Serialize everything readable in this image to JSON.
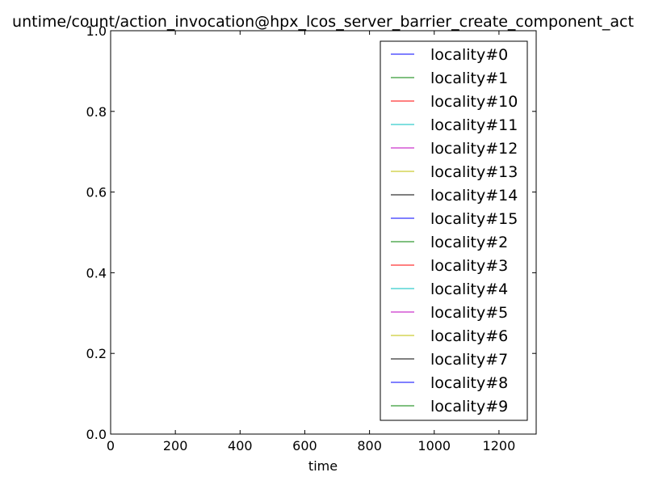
{
  "chart_data": {
    "type": "line",
    "title": "untime/count/action_invocation@hpx_lcos_server_barrier_create_component_act",
    "xlabel": "time",
    "ylabel": "",
    "xlim": [
      0,
      1315
    ],
    "ylim": [
      0.0,
      1.0
    ],
    "x_ticks": [
      "0",
      "200",
      "400",
      "600",
      "800",
      "1000",
      "1200"
    ],
    "y_ticks": [
      "0.0",
      "0.2",
      "0.4",
      "0.6",
      "0.8",
      "1.0"
    ],
    "grid": false,
    "legend_position": "upper-right",
    "series": [
      {
        "name": "locality#0",
        "color": "#0000ff",
        "x": [
          0,
          1315
        ],
        "y": [
          0,
          0
        ]
      },
      {
        "name": "locality#1",
        "color": "#008000",
        "x": [
          0,
          1315
        ],
        "y": [
          0,
          0
        ]
      },
      {
        "name": "locality#10",
        "color": "#ff0000",
        "x": [
          0,
          1315
        ],
        "y": [
          0,
          0
        ]
      },
      {
        "name": "locality#11",
        "color": "#00bfbf",
        "x": [
          0,
          1315
        ],
        "y": [
          0,
          0
        ]
      },
      {
        "name": "locality#12",
        "color": "#bf00bf",
        "x": [
          0,
          1315
        ],
        "y": [
          0,
          0
        ]
      },
      {
        "name": "locality#13",
        "color": "#bfbf00",
        "x": [
          0,
          1315
        ],
        "y": [
          0,
          0
        ]
      },
      {
        "name": "locality#14",
        "color": "#000000",
        "x": [
          0,
          1315
        ],
        "y": [
          0,
          0
        ]
      },
      {
        "name": "locality#15",
        "color": "#0000ff",
        "x": [
          0,
          1315
        ],
        "y": [
          0,
          0
        ]
      },
      {
        "name": "locality#2",
        "color": "#008000",
        "x": [
          0,
          1315
        ],
        "y": [
          0,
          0
        ]
      },
      {
        "name": "locality#3",
        "color": "#ff0000",
        "x": [
          0,
          1315
        ],
        "y": [
          0,
          0
        ]
      },
      {
        "name": "locality#4",
        "color": "#00bfbf",
        "x": [
          0,
          1315
        ],
        "y": [
          0,
          0
        ]
      },
      {
        "name": "locality#5",
        "color": "#bf00bf",
        "x": [
          0,
          1315
        ],
        "y": [
          0,
          0
        ]
      },
      {
        "name": "locality#6",
        "color": "#bfbf00",
        "x": [
          0,
          1315
        ],
        "y": [
          0,
          0
        ]
      },
      {
        "name": "locality#7",
        "color": "#000000",
        "x": [
          0,
          1315
        ],
        "y": [
          0,
          0
        ]
      },
      {
        "name": "locality#8",
        "color": "#0000ff",
        "x": [
          0,
          1315
        ],
        "y": [
          0,
          0
        ]
      },
      {
        "name": "locality#9",
        "color": "#008000",
        "x": [
          0,
          1315
        ],
        "y": [
          0,
          0
        ]
      }
    ]
  }
}
